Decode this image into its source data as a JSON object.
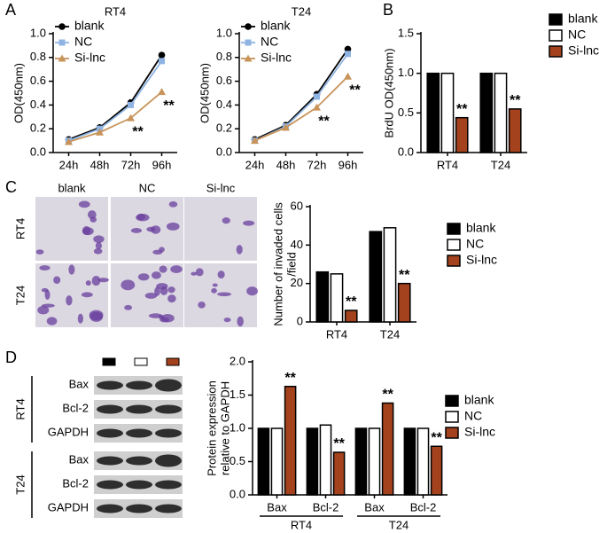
{
  "panels": [
    "A",
    "B",
    "C",
    "D"
  ],
  "micrographs": {
    "columns": [
      "blank",
      "NC",
      "Si-lnc"
    ],
    "rows": [
      "RT4",
      "T24"
    ]
  },
  "blot": {
    "groups": [
      {
        "label": "RT4",
        "rows": [
          "Bax",
          "Bcl-2",
          "GAPDH"
        ]
      },
      {
        "label": "T24",
        "rows": [
          "Bax",
          "Bcl-2",
          "GAPDH"
        ]
      }
    ]
  },
  "chart_data": [
    {
      "type": "line",
      "title": "RT4",
      "ylabel": "OD(450nm)",
      "categories": [
        "24h",
        "48h",
        "72h",
        "96h"
      ],
      "ylim": [
        0,
        1.0
      ],
      "yticks": [
        {
          "value": 0,
          "label": "0.0"
        },
        0.2,
        0.4,
        0.6,
        0.8,
        {
          "value": 1,
          "label": "1.0"
        }
      ],
      "legend": "upper left",
      "series": [
        {
          "name": "blank",
          "color": "#000000",
          "marker": "circle",
          "values": [
            0.11,
            0.21,
            0.42,
            0.82
          ]
        },
        {
          "name": "NC",
          "color": "#8fb4e3",
          "marker": "square",
          "values": [
            0.1,
            0.2,
            0.4,
            0.77
          ]
        },
        {
          "name": "Si-lnc",
          "color": "#c8945a",
          "marker": "triangle",
          "values": [
            0.09,
            0.17,
            0.29,
            0.51
          ],
          "significance": [
            null,
            null,
            "**",
            "**"
          ]
        }
      ]
    },
    {
      "type": "line",
      "title": "T24",
      "ylabel": "OD(450nm)",
      "categories": [
        "24h",
        "48h",
        "72h",
        "96h"
      ],
      "ylim": [
        0,
        1.0
      ],
      "yticks": [
        {
          "value": 0,
          "label": "0.0"
        },
        0.2,
        0.4,
        0.6,
        0.8,
        {
          "value": 1,
          "label": "1.0"
        }
      ],
      "legend": "upper left",
      "series": [
        {
          "name": "blank",
          "color": "#000000",
          "marker": "circle",
          "values": [
            0.11,
            0.23,
            0.49,
            0.87
          ]
        },
        {
          "name": "NC",
          "color": "#8fb4e3",
          "marker": "square",
          "values": [
            0.1,
            0.22,
            0.47,
            0.83
          ]
        },
        {
          "name": "Si-lnc",
          "color": "#c8945a",
          "marker": "triangle",
          "values": [
            0.1,
            0.21,
            0.38,
            0.64
          ],
          "significance": [
            null,
            null,
            "**",
            "**"
          ]
        }
      ]
    },
    {
      "type": "bar",
      "ylabel": "BrdU OD(450nm)",
      "categories": [
        "RT4",
        "T24"
      ],
      "ylim": [
        0,
        1.5
      ],
      "yticks": [
        {
          "value": 0,
          "label": "0.0"
        },
        0.5,
        {
          "value": 1,
          "label": "1.0"
        },
        1.5
      ],
      "legend": "upper right",
      "series": [
        {
          "name": "blank",
          "color": "#000000",
          "values": [
            1.0,
            1.0
          ]
        },
        {
          "name": "NC",
          "color": "#ffffff",
          "values": [
            1.0,
            1.0
          ]
        },
        {
          "name": "Si-lnc",
          "color": "#a3421d",
          "values": [
            0.44,
            0.55
          ],
          "significance": [
            "**",
            "**"
          ]
        }
      ]
    },
    {
      "type": "bar",
      "ylabel": [
        "Number of invaded cells",
        "/field"
      ],
      "categories": [
        "RT4",
        "T24"
      ],
      "ylim": [
        0,
        60
      ],
      "yticks": [
        0,
        20,
        40,
        60
      ],
      "legend": "upper right",
      "series": [
        {
          "name": "blank",
          "color": "#000000",
          "values": [
            26,
            47
          ]
        },
        {
          "name": "NC",
          "color": "#ffffff",
          "values": [
            25,
            49
          ]
        },
        {
          "name": "Si-lnc",
          "color": "#a3421d",
          "values": [
            6,
            20
          ],
          "significance": [
            "**",
            "**"
          ]
        }
      ]
    },
    {
      "type": "bar",
      "ylabel": [
        "Protein expression",
        "relative to GAPDH"
      ],
      "categories": [
        "Bax",
        "Bcl-2",
        "Bax",
        "Bcl-2"
      ],
      "groups": [
        "RT4",
        "T24"
      ],
      "ylim": [
        0,
        2.0
      ],
      "yticks": [
        {
          "value": 0,
          "label": "0.0"
        },
        0.5,
        {
          "value": 1,
          "label": "1.0"
        },
        1.5,
        {
          "value": 2,
          "label": "2.0"
        }
      ],
      "legend": "upper right",
      "series": [
        {
          "name": "blank",
          "color": "#000000",
          "values": [
            1.0,
            1.0,
            1.0,
            1.0
          ]
        },
        {
          "name": "NC",
          "color": "#ffffff",
          "values": [
            1.0,
            1.05,
            1.0,
            1.0
          ]
        },
        {
          "name": "Si-lnc",
          "color": "#a3421d",
          "values": [
            1.63,
            0.64,
            1.38,
            0.73
          ],
          "significance": [
            "**",
            "**",
            "**",
            "**"
          ]
        }
      ]
    }
  ]
}
